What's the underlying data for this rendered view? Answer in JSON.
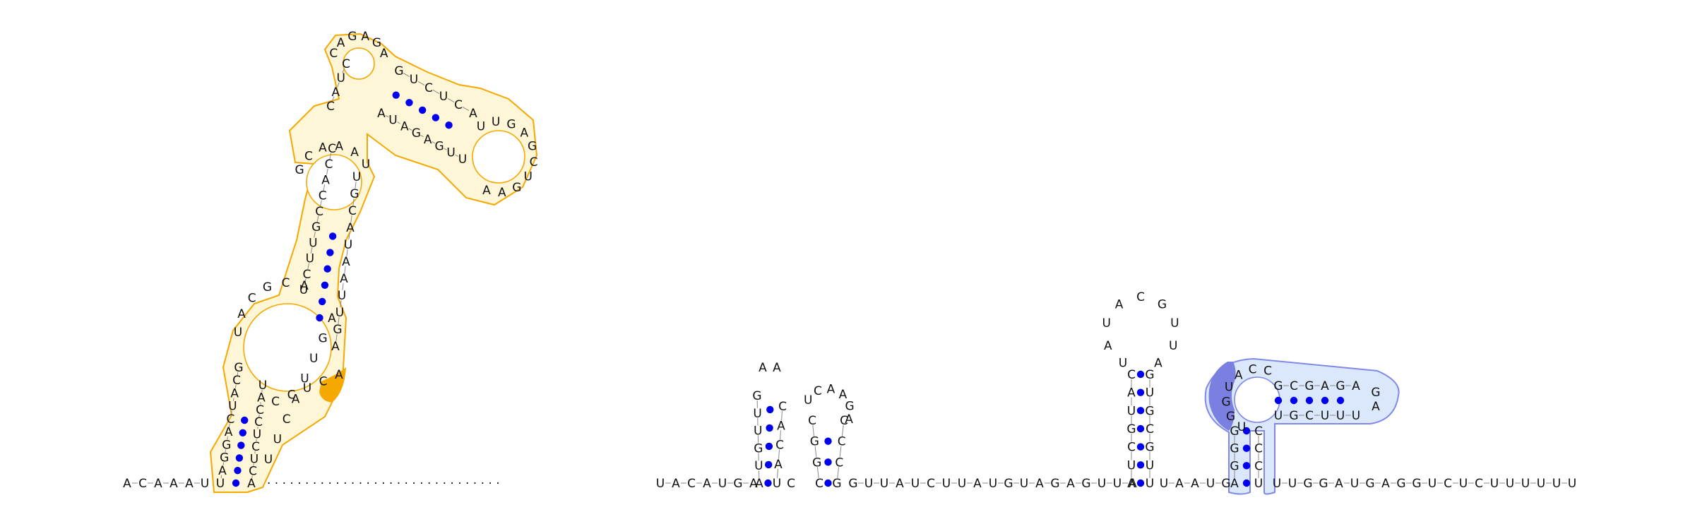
{
  "diagram": {
    "type": "rna-secondary-structure",
    "sequence": "ACAAAUUUAGGACUACGCAAAAUCUUGCCACCAGAGAGUCUCAUUGAGCUGAAUGAUUAUCAAAUUACUGGAUUUCUCAACCACCUCAGGAACC",
    "colors": {
      "background": "#ffffff",
      "nucleotide_text": "#111111",
      "base_pair_dot": "#0000ee",
      "backbone_line": "#888888",
      "highlight_1_outline": "#f5a800",
      "highlight_1_fill": "#fff6d8",
      "highlight_1_accent": "#f5a800",
      "highlight_2_outline": "#8088e8",
      "highlight_2_fill": "#dbe8fb",
      "highlight_2_accent": "#7b80e0"
    },
    "highlights": [
      {
        "name": "region-1",
        "color_key": "highlight_1"
      },
      {
        "name": "region-2",
        "color_key": "highlight_2"
      }
    ]
  },
  "strands": {
    "five_prime_tail": [
      "A",
      "C",
      "A",
      "A",
      "A",
      "U"
    ],
    "helix_a_left": [
      "U",
      "A",
      "G",
      "G",
      "A",
      "C",
      "U",
      "A",
      "C",
      "G"
    ],
    "helix_a_right": [
      "A",
      "C",
      "U",
      "C",
      "U",
      "C",
      "C",
      "A",
      "U"
    ],
    "helix_b_left": [
      "U",
      "C",
      "U",
      "U",
      "G",
      "C",
      "C",
      "A",
      "C",
      "C"
    ],
    "helix_b_right": [
      "A",
      "G",
      "U",
      "U",
      "A",
      "A",
      "U",
      "A",
      "C",
      "G",
      "U"
    ],
    "apical_loop": [
      "A",
      "G",
      "A",
      "G",
      "A",
      "G",
      "U",
      "C",
      "U",
      "C",
      "A",
      "U",
      "U",
      "G",
      "A",
      "G",
      "C",
      "U",
      "G",
      "A",
      "A",
      "U",
      "G",
      "A",
      "U",
      "U",
      "A",
      "U",
      "C",
      "A",
      "A",
      "A",
      "U",
      "U",
      "A",
      "C"
    ],
    "linker_dots": "·  ·  ·  ·  ·  ·  ·  ·  ·  ·  ·  ·  ·  ·  ·  ·  ·  ·  ·  ·  ·  ·  ·  ·  ·  ·  ·  ·  ·  ·  ·",
    "segment_1": [
      "U",
      "A",
      "C",
      "A",
      "U",
      "G",
      "A"
    ],
    "hairpin_1": [
      "U",
      "G",
      "U",
      "U",
      "A",
      "A",
      "C",
      "A",
      "C",
      "C",
      "U"
    ],
    "hairpin_2": [
      "C",
      "G",
      "G",
      "C",
      "U",
      "C",
      "A",
      "A",
      "G",
      "A",
      "C",
      "C",
      "C"
    ],
    "segment_2": [
      "G",
      "U",
      "U",
      "A",
      "U",
      "C",
      "U",
      "U",
      "A",
      "U",
      "G",
      "U",
      "A",
      "G",
      "A",
      "G",
      "U",
      "U",
      "A"
    ],
    "hairpin_3": [
      "U",
      "C",
      "G",
      "U",
      "A",
      "C",
      "U",
      "A",
      "U",
      "A",
      "C",
      "G",
      "U",
      "U",
      "A",
      "G",
      "U",
      "C",
      "G",
      "U",
      "G",
      "U"
    ],
    "segment_3": [
      "U",
      "A",
      "A",
      "U",
      "G"
    ],
    "hairpin_4_stem_left": [
      "A",
      "G",
      "G",
      "G",
      "U"
    ],
    "hairpin_4_loop": [
      "A",
      "C",
      "C",
      "G",
      "C",
      "G",
      "A",
      "G",
      "A",
      "G",
      "A",
      "U",
      "U",
      "U",
      "C",
      "G",
      "U"
    ],
    "hairpin_4_stem_right": [
      "C",
      "C",
      "C",
      "U"
    ],
    "three_prime_tail": [
      "U",
      "U",
      "G",
      "G",
      "A",
      "U",
      "G",
      "A",
      "G",
      "G",
      "U",
      "C",
      "U",
      "C",
      "U",
      "U",
      "U",
      "U",
      "U",
      "U"
    ]
  }
}
